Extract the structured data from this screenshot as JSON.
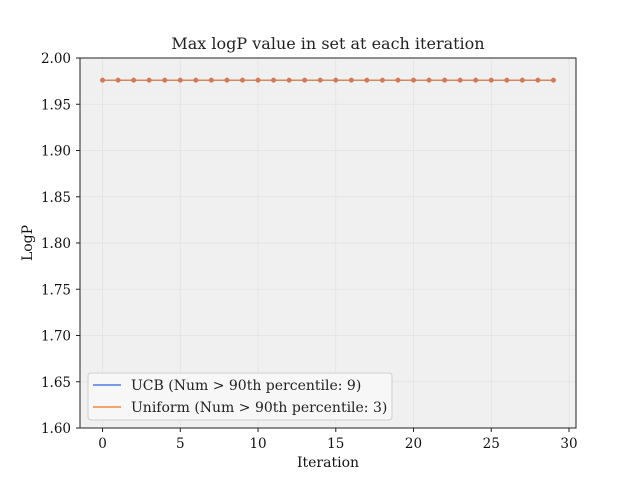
{
  "chart_data": {
    "type": "line",
    "title": "Max logP value in set at each iteration",
    "xlabel": "Iteration",
    "ylabel": "LogP",
    "xlim": [
      -1.45,
      30.45
    ],
    "ylim": [
      1.6,
      2.0
    ],
    "x_ticks": [
      0,
      5,
      10,
      15,
      20,
      25,
      30
    ],
    "y_ticks": [
      1.6,
      1.65,
      1.7,
      1.75,
      1.8,
      1.85,
      1.9,
      1.95,
      2.0
    ],
    "x_tick_labels": [
      "0",
      "5",
      "10",
      "15",
      "20",
      "25",
      "30"
    ],
    "y_tick_labels": [
      "1.60",
      "1.65",
      "1.70",
      "1.75",
      "1.80",
      "1.85",
      "1.90",
      "1.95",
      "2.00"
    ],
    "grid": true,
    "legend_position": "lower-left",
    "x": [
      0,
      1,
      2,
      3,
      4,
      5,
      6,
      7,
      8,
      9,
      10,
      11,
      12,
      13,
      14,
      15,
      16,
      17,
      18,
      19,
      20,
      21,
      22,
      23,
      24,
      25,
      26,
      27,
      28,
      29
    ],
    "series": [
      {
        "name": "UCB (Num > 90th percentile: 9)",
        "color": "#4c7be0",
        "values": [
          1.976,
          1.976,
          1.976,
          1.976,
          1.976,
          1.976,
          1.976,
          1.976,
          1.976,
          1.976,
          1.976,
          1.976,
          1.976,
          1.976,
          1.976,
          1.976,
          1.976,
          1.976,
          1.976,
          1.976,
          1.976,
          1.976,
          1.976,
          1.976,
          1.976,
          1.976,
          1.976,
          1.976,
          1.976,
          1.976
        ]
      },
      {
        "name": "Uniform (Num > 90th percentile: 3)",
        "color": "#f08a3c",
        "values": [
          1.976,
          1.976,
          1.976,
          1.976,
          1.976,
          1.976,
          1.976,
          1.976,
          1.976,
          1.976,
          1.976,
          1.976,
          1.976,
          1.976,
          1.976,
          1.976,
          1.976,
          1.976,
          1.976,
          1.976,
          1.976,
          1.976,
          1.976,
          1.976,
          1.976,
          1.976,
          1.976,
          1.976,
          1.976,
          1.976
        ]
      }
    ],
    "plot_background": "#f0f0f0",
    "marker_color": "#d07a5a"
  }
}
